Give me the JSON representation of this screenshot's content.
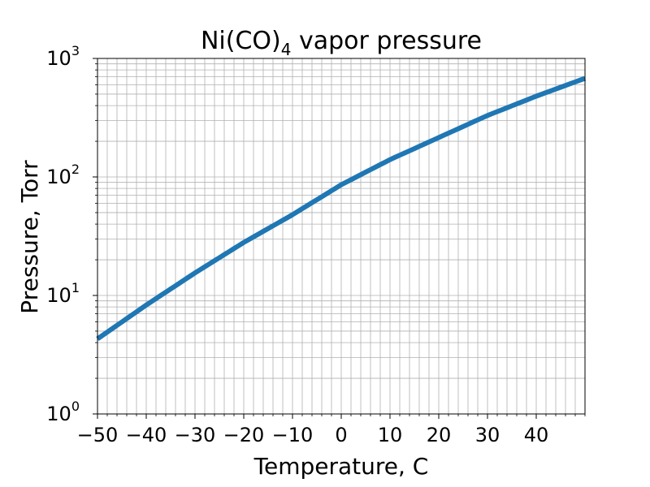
{
  "chart_data": {
    "type": "line",
    "title_main": "Ni(CO)",
    "title_sub": "4",
    "title_rest": " vapor pressure",
    "xlabel": "Temperature, C",
    "ylabel": "Pressure, Torr",
    "xlim": [
      -50,
      50
    ],
    "ylim": [
      1,
      1000
    ],
    "yscale": "log",
    "grid": "major and minor",
    "x_ticks": [
      -50,
      -40,
      -30,
      -20,
      -10,
      0,
      10,
      20,
      30,
      40
    ],
    "x_tick_labels": [
      "−50",
      "−40",
      "−30",
      "−20",
      "−10",
      "0",
      "10",
      "20",
      "30",
      "40"
    ],
    "y_ticks": [
      {
        "value": 1,
        "base": "10",
        "exp": "0"
      },
      {
        "value": 10,
        "base": "10",
        "exp": "1"
      },
      {
        "value": 100,
        "base": "10",
        "exp": "2"
      },
      {
        "value": 1000,
        "base": "10",
        "exp": "3"
      }
    ],
    "series": [
      {
        "color": "#1f77b4",
        "x": [
          -50,
          -40,
          -30,
          -20,
          -10,
          0,
          10,
          20,
          30,
          40,
          50
        ],
        "y": [
          4.3,
          8.3,
          15.5,
          28,
          48,
          86,
          140,
          215,
          330,
          480,
          680
        ]
      }
    ]
  }
}
